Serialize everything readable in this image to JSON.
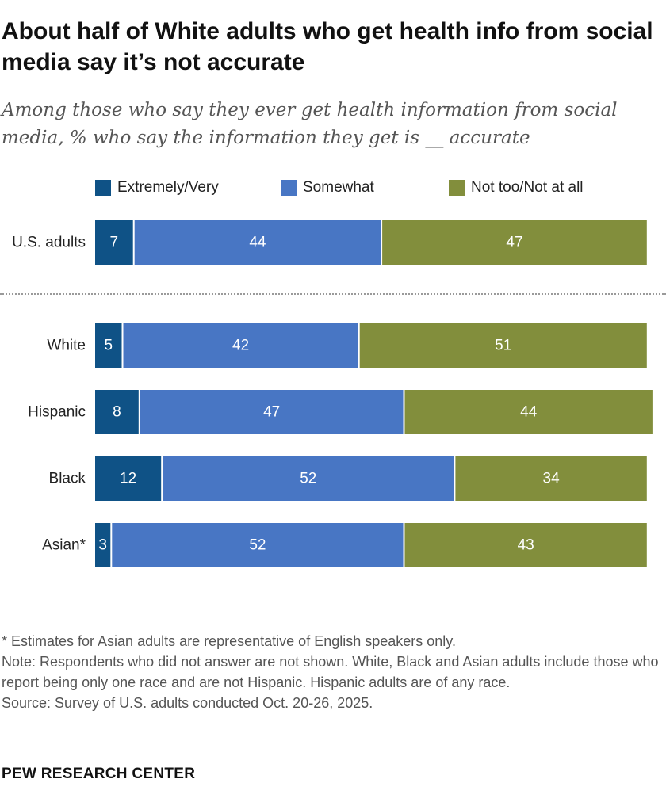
{
  "chart_data": {
    "type": "bar",
    "orientation": "horizontal",
    "stacked": true,
    "title": "About half of White adults who get health info from social media say it’s not accurate",
    "subtitle": "Among those who say they ever get health information from social media, % who say the information they get is __ accurate",
    "categories": [
      "U.S. adults",
      "White",
      "Hispanic",
      "Black",
      "Asian*"
    ],
    "series": [
      {
        "name": "Extremely/Very",
        "color": "#0F5286",
        "values": [
          7,
          5,
          8,
          12,
          3
        ]
      },
      {
        "name": "Somewhat",
        "color": "#4876C4",
        "values": [
          44,
          42,
          47,
          52,
          52
        ]
      },
      {
        "name": "Not too/Not at all",
        "color": "#828E3C",
        "values": [
          47,
          51,
          44,
          34,
          43
        ]
      }
    ],
    "xlim": [
      0,
      100
    ],
    "legend": "top",
    "grid": false
  },
  "notes": {
    "asterisk": "* Estimates for Asian adults are representative of English speakers only.",
    "note": "Note: Respondents who did not answer are not shown. White, Black and Asian adults include those who report being only one race and are not Hispanic. Hispanic adults are of any race.",
    "source": "Source: Survey of U.S. adults conducted Oct. 20-26, 2025."
  },
  "brand": "PEW RESEARCH CENTER"
}
